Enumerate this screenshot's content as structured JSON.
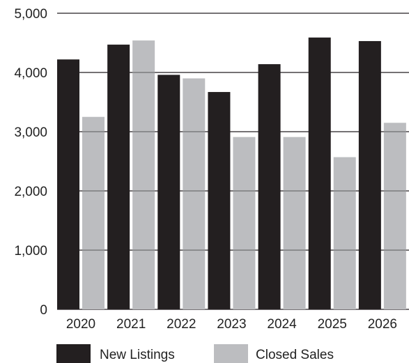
{
  "chart_data": {
    "type": "bar",
    "title": "",
    "xlabel": "",
    "ylabel": "",
    "categories": [
      "2020",
      "2021",
      "2022",
      "2023",
      "2024",
      "2025",
      "2026"
    ],
    "series": [
      {
        "name": "New Listings",
        "color": "#231f20",
        "values": [
          4220,
          4470,
          3960,
          3670,
          4140,
          4590,
          4530
        ]
      },
      {
        "name": "Closed Sales",
        "color": "#bcbdc0",
        "values": [
          3250,
          4540,
          3900,
          2910,
          2910,
          2570,
          3150
        ]
      }
    ],
    "ylim": [
      0,
      5000
    ],
    "yticks": [
      0,
      1000,
      2000,
      3000,
      4000,
      5000
    ],
    "ytick_labels": [
      "0",
      "1,000",
      "2,000",
      "3,000",
      "4,000",
      "5,000"
    ],
    "grid": true,
    "legend_position": "bottom"
  }
}
